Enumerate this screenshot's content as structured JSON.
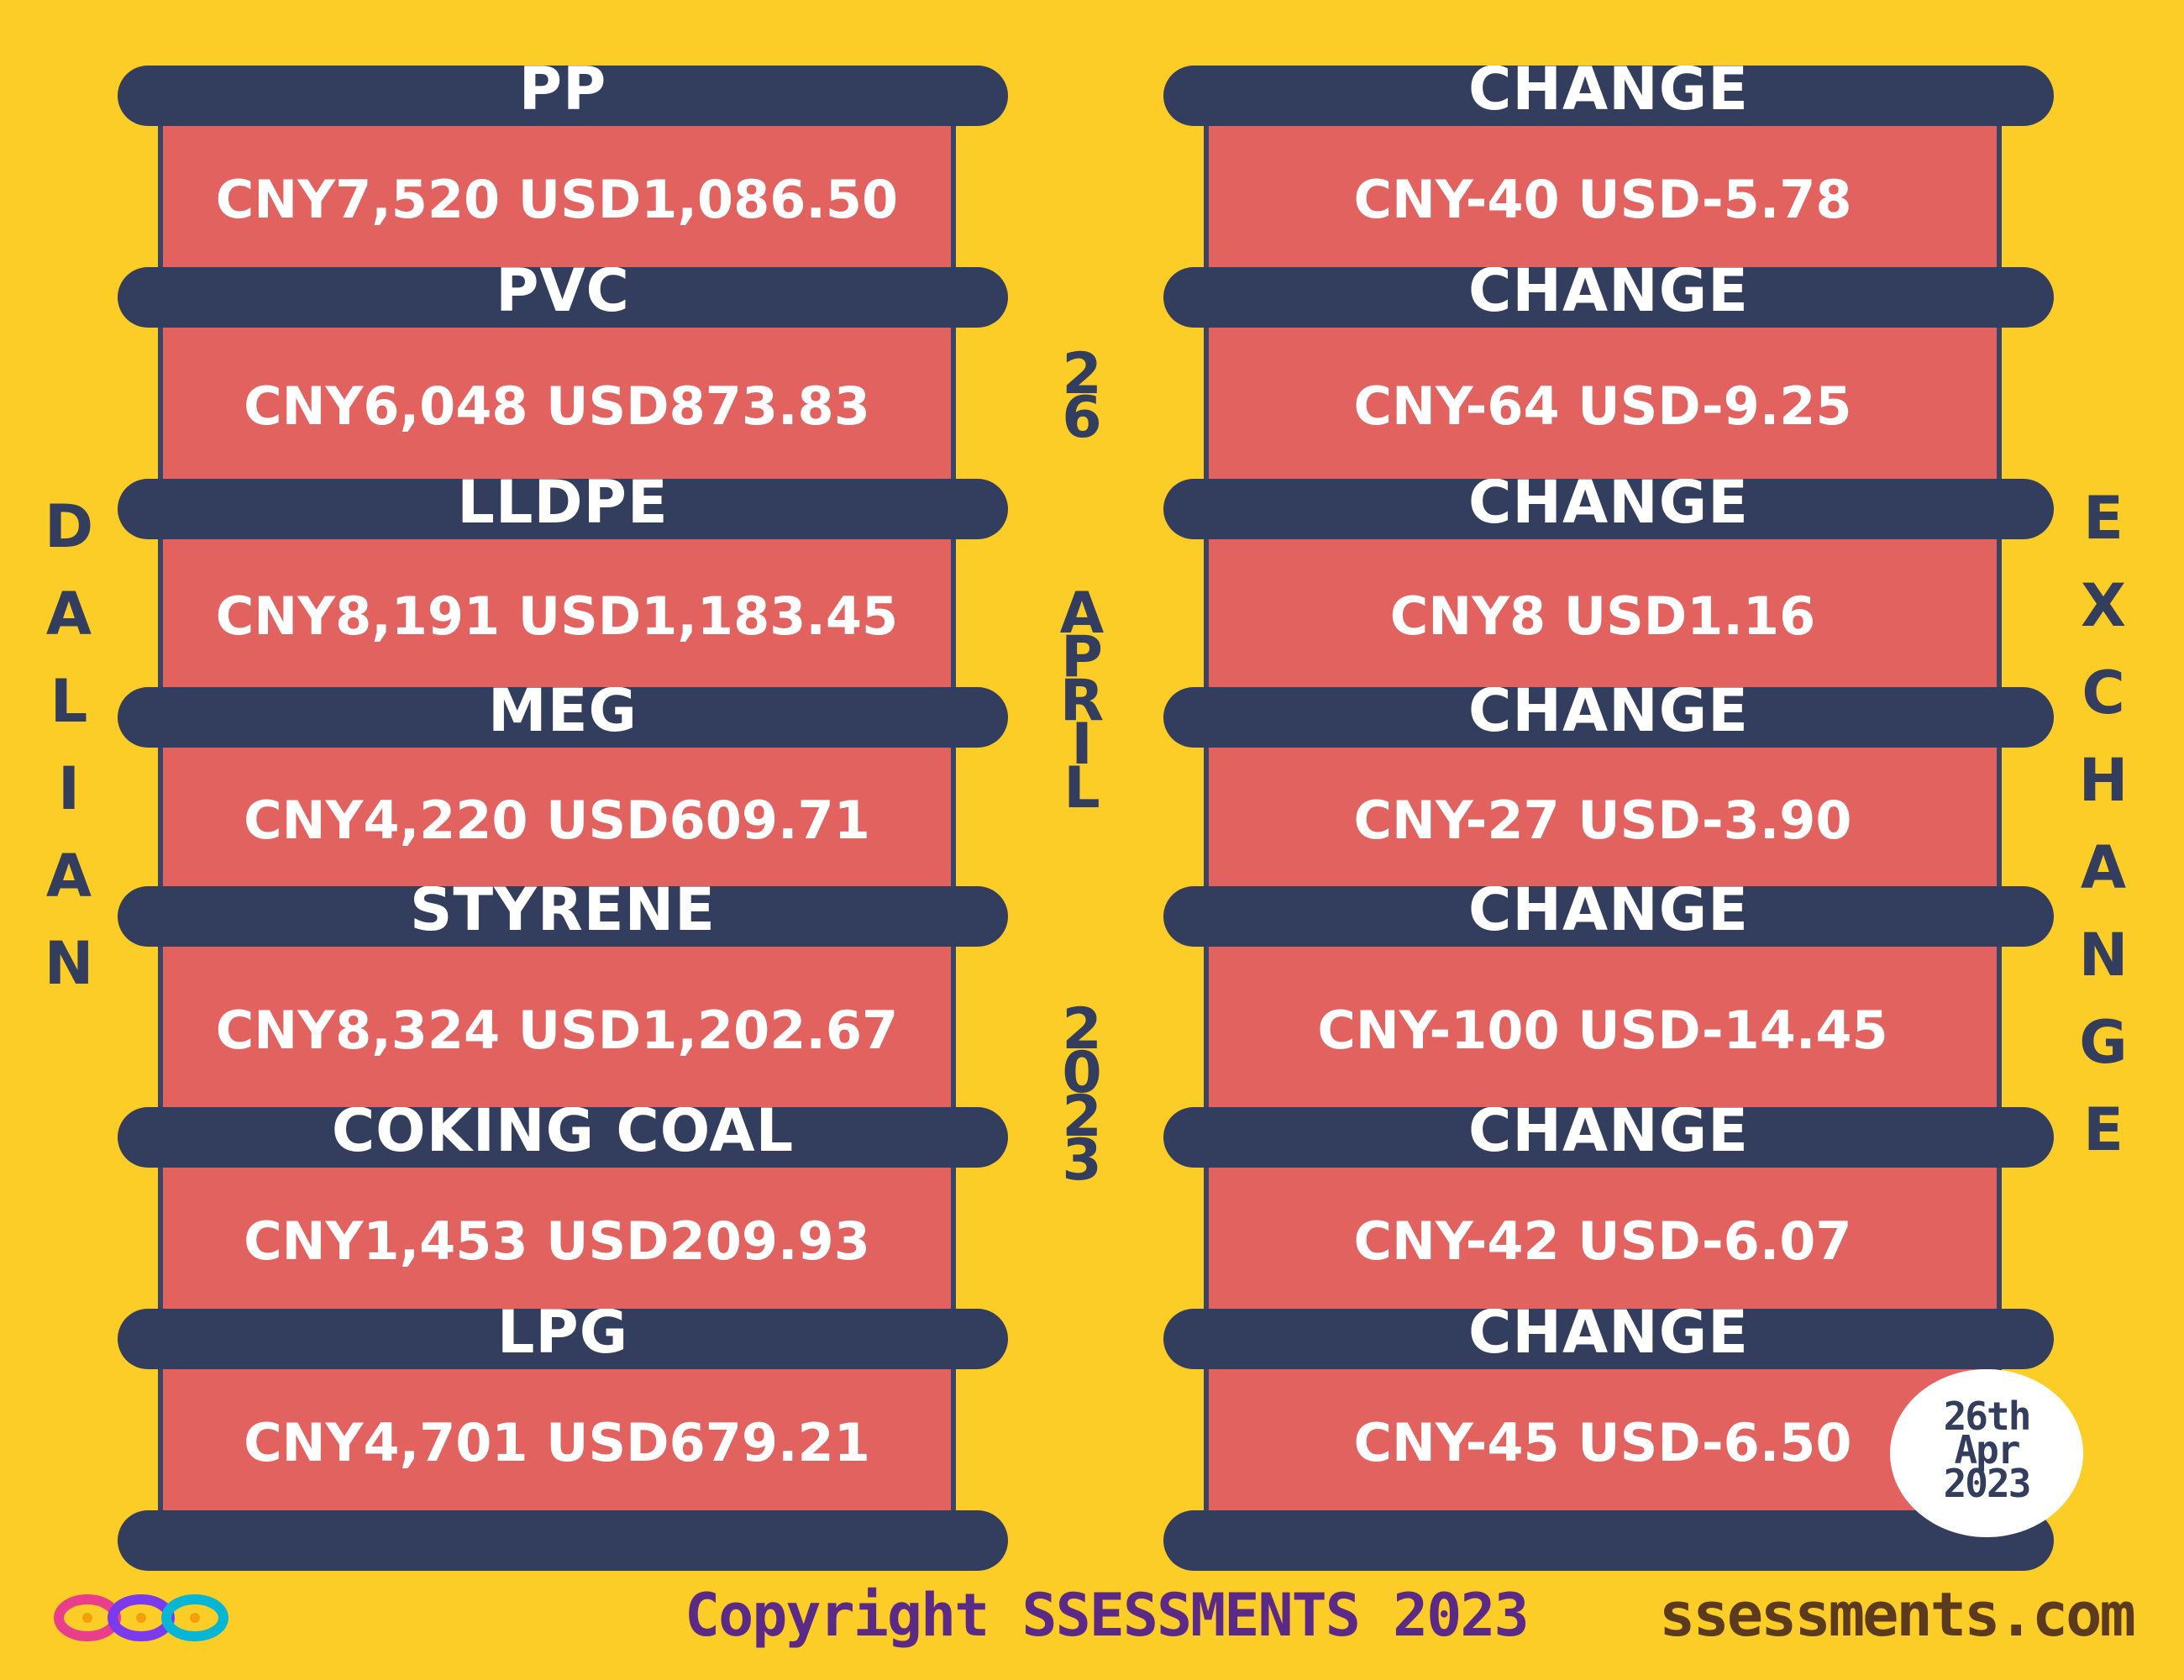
{
  "colors": {
    "background": "#fccd26",
    "bar": "#333d5e",
    "panel": "#e2625f",
    "panel_border": "#3a4466",
    "text_light": "#ffffff",
    "text_dark": "#333d5e",
    "copyright": "#5b2a86",
    "url": "#5c3a1e"
  },
  "left_vertical": [
    "D",
    "A",
    "L",
    "I",
    "A",
    "N"
  ],
  "right_vertical": [
    "E",
    "X",
    "C",
    "H",
    "A",
    "N",
    "G",
    "E"
  ],
  "center_vertical": {
    "day": [
      "2",
      "6"
    ],
    "month": [
      "A",
      "P",
      "R",
      "I",
      "L"
    ],
    "year": [
      "2",
      "0",
      "2",
      "3"
    ]
  },
  "commodities": [
    {
      "name": "PP",
      "price": "CNY7,520  USD1,086.50",
      "change_label": "CHANGE",
      "change": "CNY-40  USD-5.78"
    },
    {
      "name": "PVC",
      "price": "CNY6,048  USD873.83",
      "change_label": "CHANGE",
      "change": "CNY-64  USD-9.25"
    },
    {
      "name": "LLDPE",
      "price": "CNY8,191  USD1,183.45",
      "change_label": "CHANGE",
      "change": "CNY8  USD1.16"
    },
    {
      "name": "MEG",
      "price": "CNY4,220  USD609.71",
      "change_label": "CHANGE",
      "change": "CNY-27  USD-3.90"
    },
    {
      "name": "STYRENE",
      "price": "CNY8,324  USD1,202.67",
      "change_label": "CHANGE",
      "change": "CNY-100  USD-14.45"
    },
    {
      "name": "COKING COAL",
      "price": "CNY1,453  USD209.93",
      "change_label": "CHANGE",
      "change": "CNY-42  USD-6.07"
    },
    {
      "name": "LPG",
      "price": "CNY4,701  USD679.21",
      "change_label": "CHANGE",
      "change": "CNY-45  USD-6.50"
    }
  ],
  "badge": {
    "line1": "26th",
    "line2": "Apr",
    "line3": "2023"
  },
  "footer": {
    "copyright": "Copyright SSESSMENTS 2023",
    "url": "ssessments.com"
  },
  "logo": {
    "icon": "infinity-loops-logo-icon",
    "colors": [
      "#e83e8c",
      "#f59e0b",
      "#7c3aed",
      "#06b6d4"
    ]
  }
}
